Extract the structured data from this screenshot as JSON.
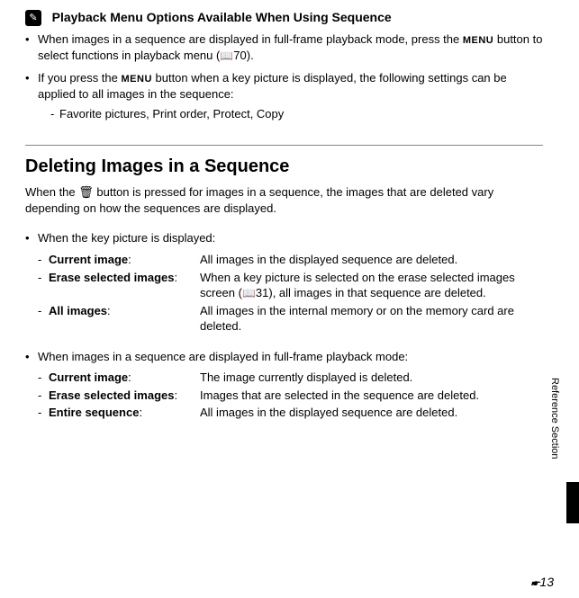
{
  "note": {
    "title": "Playback Menu Options Available When Using Sequence",
    "pencil": "✎",
    "item1_a": "When images in a sequence are displayed in full-frame playback mode, press the ",
    "item1_menu": "MENU",
    "item1_b": " button to select functions in playback menu (",
    "item1_book": "📖",
    "item1_ref": "70).",
    "item2_a": "If you press the ",
    "item2_menu": "MENU",
    "item2_b": " button when a key picture is displayed, the following settings can be applied to all images in the sequence:",
    "item2_sub": "Favorite pictures, Print order, Protect, Copy"
  },
  "section": {
    "title": "Deleting Images in a Sequence",
    "intro_a": "When the ",
    "trash": "🗑",
    "intro_b": " button is pressed for images in a sequence, the images that are deleted vary depending on how the sequences are displayed."
  },
  "group1": {
    "title": "When the key picture is displayed:",
    "r1_label": "Current image",
    "r1_desc": "All images in the displayed sequence are deleted.",
    "r2_label": "Erase selected images",
    "r2_desc_a": "When a key picture is selected on the erase selected images screen (",
    "r2_book": "📖",
    "r2_desc_b": "31), all images in that sequence are deleted.",
    "r3_label": "All images",
    "r3_desc": "All images in the internal memory or on the memory card are deleted."
  },
  "group2": {
    "title": "When images in a sequence are displayed in full-frame playback mode:",
    "r1_label": "Current image",
    "r1_desc": "The image currently displayed is deleted.",
    "r2_label": "Erase selected images",
    "r2_desc": "Images that are selected in the sequence are deleted.",
    "r3_label": "Entire sequence",
    "r3_desc": "All images in the displayed sequence are deleted."
  },
  "side": {
    "label": "Reference Section"
  },
  "page": {
    "icon": "🖝",
    "num": "13"
  }
}
